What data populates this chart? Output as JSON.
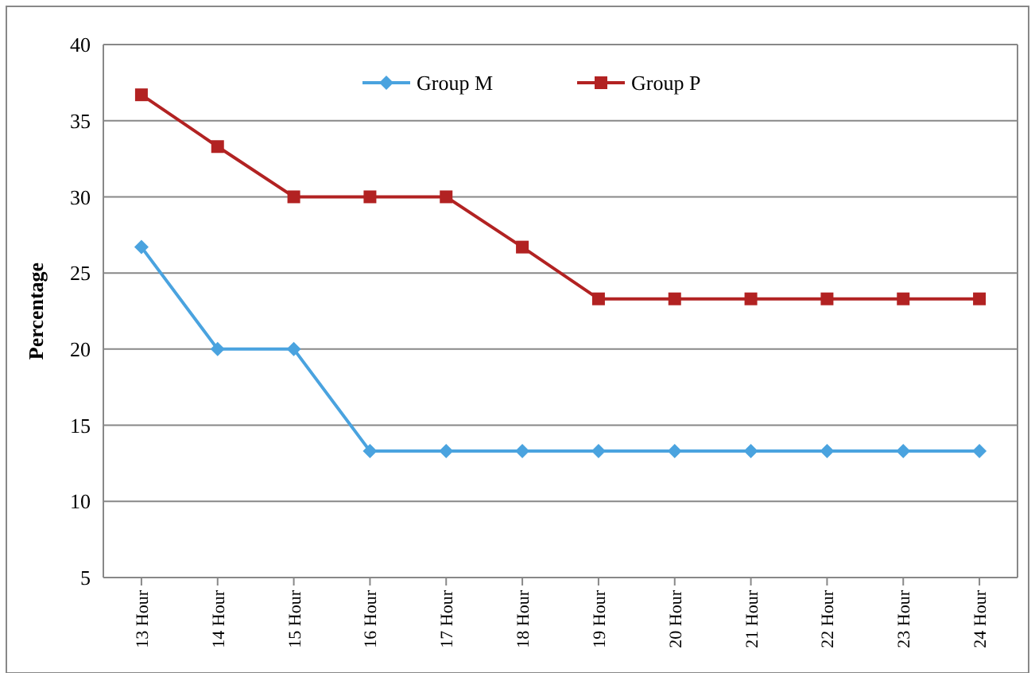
{
  "chart_data": {
    "type": "line",
    "ylabel": "Percentage",
    "categories": [
      "13 Hour",
      "14 Hour",
      "15 Hour",
      "16 Hour",
      "17 Hour",
      "18 Hour",
      "19 Hour",
      "20 Hour",
      "21 Hour",
      "22 Hour",
      "23 Hour",
      "24 Hour"
    ],
    "series": [
      {
        "name": "Group M",
        "color": "#4aa3df",
        "marker": "diamond",
        "values": [
          26.7,
          20,
          20,
          13.3,
          13.3,
          13.3,
          13.3,
          13.3,
          13.3,
          13.3,
          13.3,
          13.3
        ]
      },
      {
        "name": "Group P",
        "color": "#b22222",
        "marker": "square",
        "values": [
          36.7,
          33.3,
          30,
          30,
          30,
          26.7,
          23.3,
          23.3,
          23.3,
          23.3,
          23.3,
          23.3
        ]
      }
    ],
    "ylim": [
      5,
      40
    ],
    "yticks": [
      5,
      10,
      15,
      20,
      25,
      30,
      35,
      40
    ],
    "grid": "y",
    "legend": "top",
    "line_style": "solid"
  }
}
